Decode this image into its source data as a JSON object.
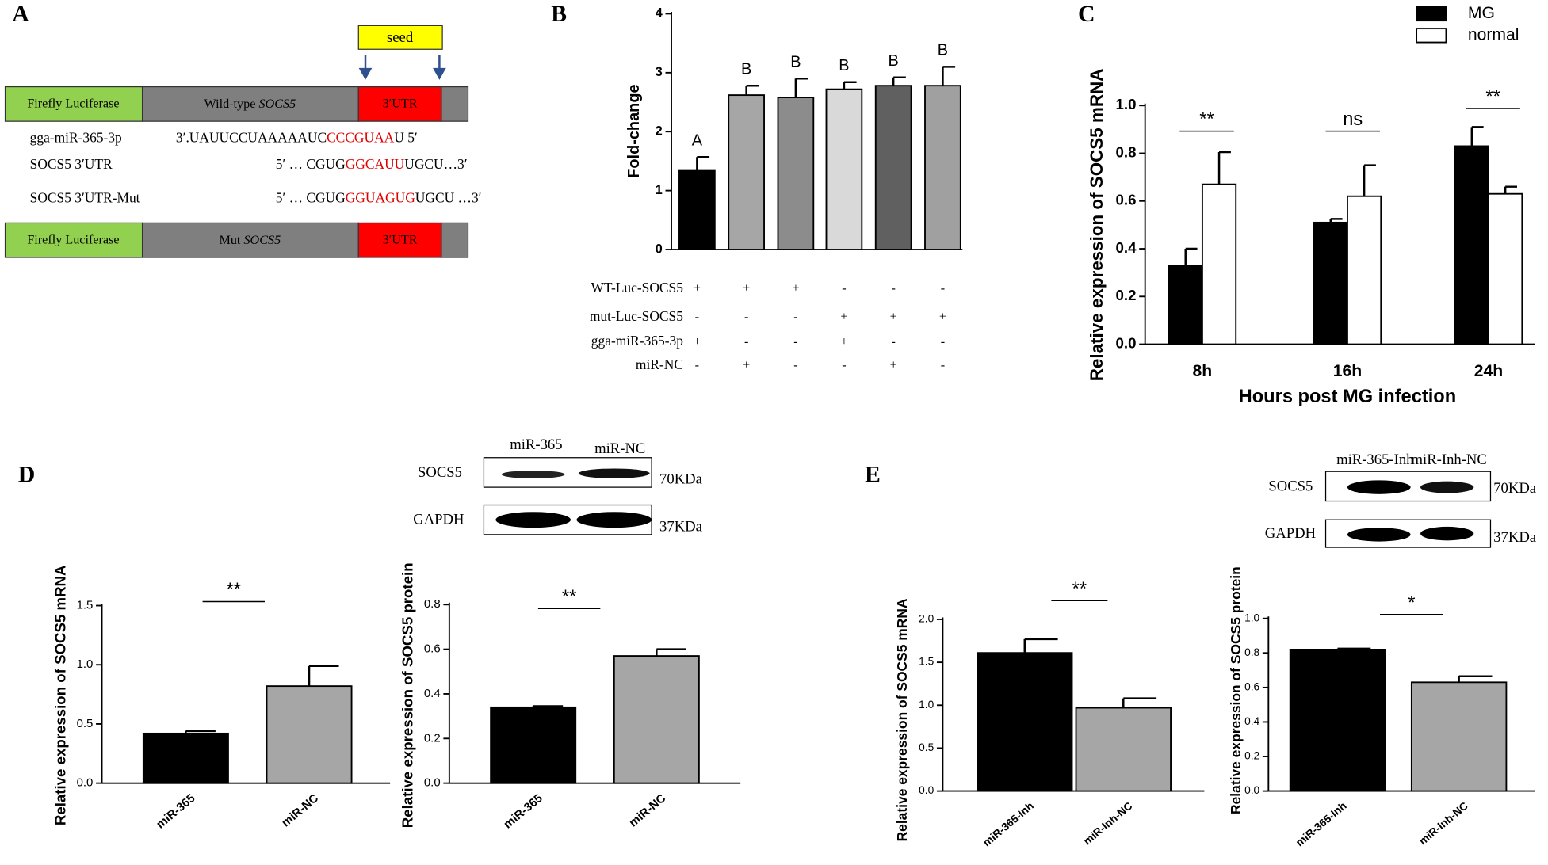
{
  "panels": {
    "labels": [
      "A",
      "B",
      "C",
      "D",
      "E"
    ]
  },
  "diagram": {
    "seed": "seed",
    "firefly": "Firefly Luciferase",
    "wt_bar": {
      "prefix": "Wild-type",
      "gene": "SOCS5"
    },
    "mut_bar": {
      "prefix": "Mut",
      "gene": "SOCS5"
    },
    "utr": "3′UTR",
    "rows": [
      {
        "name": "gga-miR-365-3p",
        "parts": [
          "3′.UAUUCCUAAAAAUC",
          "CCCGUAA",
          "U 5′"
        ]
      },
      {
        "name": "SOCS5 3′UTR",
        "parts": [
          "5′ … CGUG",
          "GGCAUU",
          "UGCU…3′"
        ]
      },
      {
        "name": "SOCS5 3′UTR-Mut",
        "parts": [
          "5′ … CGUG",
          "GGUAGUG",
          "UGCU …3′"
        ]
      }
    ]
  },
  "table": {
    "rows": [
      {
        "label": "WT-Luc-SOCS5",
        "cells": [
          "+",
          "+",
          "+",
          "-",
          "-",
          "-"
        ]
      },
      {
        "label": "mut-Luc-SOCS5",
        "cells": [
          "-",
          "-",
          "-",
          "+",
          "+",
          "+"
        ]
      },
      {
        "label": "gga-miR-365-3p",
        "cells": [
          "+",
          "-",
          "-",
          "+",
          "-",
          "-"
        ]
      },
      {
        "label": "miR-NC",
        "cells": [
          "-",
          "+",
          "-",
          "-",
          "+",
          "-"
        ]
      }
    ]
  },
  "blots": [
    {
      "lanes": [
        "miR-365",
        "miR-NC"
      ],
      "bands": [
        "SOCS5",
        "GAPDH"
      ],
      "sizes": [
        "70KDa",
        "37KDa"
      ]
    },
    {
      "lanes": [
        "miR-365-Inh",
        "miR-Inh-NC"
      ],
      "bands": [
        "SOCS5",
        "GAPDH"
      ],
      "sizes": [
        "70KDa",
        "37KDa"
      ]
    }
  ],
  "chart_data": [
    {
      "type": "bar",
      "ylabel": "Fold-change",
      "values": [
        1.35,
        2.62,
        2.58,
        2.72,
        2.78,
        2.78
      ],
      "errors": [
        0.22,
        0.16,
        0.32,
        0.12,
        0.14,
        0.32
      ],
      "colors": [
        "#000000",
        "#a6a6a6",
        "#8c8c8c",
        "#d9d9d9",
        "#606060",
        "#a0a0a0"
      ],
      "letters": [
        "A",
        "B",
        "B",
        "B",
        "B",
        "B"
      ],
      "ylim": [
        0,
        4
      ],
      "yticks": [
        0,
        1,
        2,
        3,
        4
      ]
    },
    {
      "type": "bar",
      "ylabel": "Relative  expression of SOCS5 mRNA",
      "xlabel": "Hours post MG infection",
      "categories": [
        "8h",
        "16h",
        "24h"
      ],
      "series": [
        {
          "name": "MG",
          "color": "#000000",
          "values": [
            0.33,
            0.51,
            0.83
          ],
          "errors": [
            0.07,
            0.015,
            0.08
          ]
        },
        {
          "name": "normal",
          "color": "#ffffff",
          "values": [
            0.67,
            0.62,
            0.63
          ],
          "errors": [
            0.135,
            0.13,
            0.03
          ]
        }
      ],
      "significance": [
        "**",
        "ns",
        "**"
      ],
      "ylim": [
        0,
        1.0
      ],
      "yticks": [
        {
          "value": 0,
          "label": "0.0"
        },
        0.2,
        0.4,
        0.6,
        0.8,
        {
          "value": 1,
          "label": "1.0"
        }
      ],
      "legend": "top-right"
    },
    {
      "type": "bar",
      "ylabel": "Relative  expression of SOCS5 mRNA",
      "categories": [
        "miR-365",
        "miR-NC"
      ],
      "values": [
        0.42,
        0.82
      ],
      "errors": [
        0.02,
        0.17
      ],
      "colors": [
        "#000000",
        "#a6a6a6"
      ],
      "significance": [
        "**"
      ],
      "ylim": [
        0,
        1.5
      ],
      "yticks": [
        {
          "value": 0,
          "label": "0.0"
        },
        0.5,
        {
          "value": 1,
          "label": "1.0"
        },
        1.5
      ]
    },
    {
      "type": "bar",
      "ylabel": "Relative  expression of SOCS5 protein",
      "categories": [
        "miR-365",
        "miR-NC"
      ],
      "values": [
        0.34,
        0.57
      ],
      "errors": [
        0.005,
        0.03
      ],
      "colors": [
        "#000000",
        "#a6a6a6"
      ],
      "significance": [
        "**"
      ],
      "ylim": [
        0,
        0.8
      ],
      "yticks": [
        {
          "value": 0,
          "label": "0.0"
        },
        0.2,
        0.4,
        0.6,
        0.8
      ]
    },
    {
      "type": "bar",
      "ylabel": "Relative  expression of SOCS5 mRNA",
      "categories": [
        "miR-365-Inh",
        "miR-Inh-NC"
      ],
      "values": [
        1.61,
        0.97
      ],
      "errors": [
        0.16,
        0.11
      ],
      "colors": [
        "#000000",
        "#a6a6a6"
      ],
      "significance": [
        "**"
      ],
      "ylim": [
        0,
        2.0
      ],
      "yticks": [
        {
          "value": 0,
          "label": "0.0"
        },
        0.5,
        {
          "value": 1,
          "label": "1.0"
        },
        1.5,
        {
          "value": 2,
          "label": "2.0"
        }
      ]
    },
    {
      "type": "bar",
      "ylabel": "Relative  expression of SOCS5 protein",
      "categories": [
        "miR-365-Inh",
        "miR-Inh-NC"
      ],
      "values": [
        0.82,
        0.63
      ],
      "errors": [
        0.005,
        0.035
      ],
      "colors": [
        "#000000",
        "#a6a6a6"
      ],
      "significance": [
        "*"
      ],
      "ylim": [
        0,
        1.0
      ],
      "yticks": [
        {
          "value": 0,
          "label": "0.0"
        },
        0.2,
        0.4,
        0.6,
        0.8,
        {
          "value": 1,
          "label": "1.0"
        }
      ]
    }
  ]
}
